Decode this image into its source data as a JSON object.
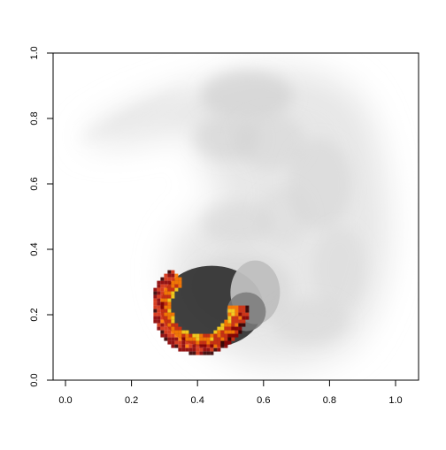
{
  "chart_data": {
    "type": "heatmap",
    "title": "",
    "xlabel": "",
    "ylabel": "",
    "xlim": [
      0.0,
      1.0
    ],
    "ylim": [
      0.0,
      1.0
    ],
    "x_ticks": [
      0.0,
      0.2,
      0.4,
      0.6,
      0.8,
      1.0
    ],
    "y_ticks": [
      0.0,
      0.2,
      0.4,
      0.6,
      0.8,
      1.0
    ],
    "x_tick_labels": [
      "0.0",
      "0.2",
      "0.4",
      "0.6",
      "0.8",
      "1.0"
    ],
    "y_tick_labels": [
      "0.0",
      "0.2",
      "0.4",
      "0.6",
      "0.8",
      "1.0"
    ],
    "grid": false,
    "legend": "none",
    "background_layer": {
      "description": "grayscale embryo silhouette",
      "colors": [
        "#e6e6e6",
        "#d0d0d0",
        "#bdbdbd"
      ]
    },
    "overlay_layer": {
      "center": [
        0.43,
        0.22
      ],
      "colormap": "heat",
      "colors": [
        "#3a0000",
        "#8b0000",
        "#d32f0f",
        "#ff7a00",
        "#ffd21a"
      ]
    },
    "colors": {
      "axis": "#000000",
      "plot_background": "#ffffff"
    }
  }
}
